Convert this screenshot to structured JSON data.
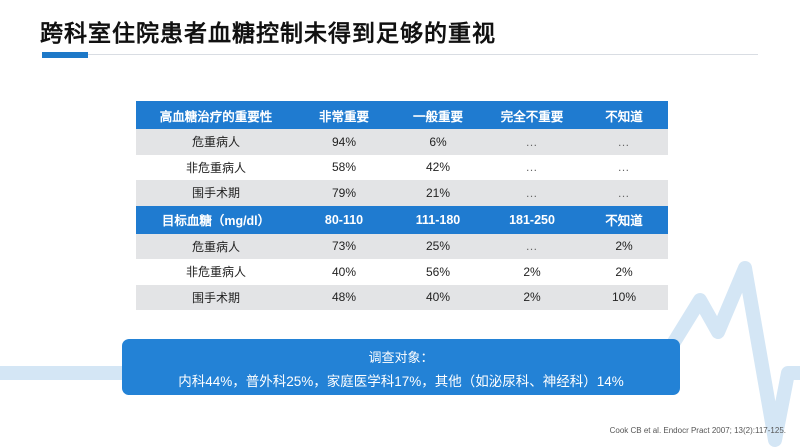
{
  "slide": {
    "title": "跨科室住院患者血糖控制未得到足够的重视"
  },
  "table": {
    "section1": {
      "header": [
        "高血糖治疗的重要性",
        "非常重要",
        "一般重要",
        "完全不重要",
        "不知道"
      ],
      "rows": [
        [
          "危重病人",
          "94%",
          "6%",
          "…",
          "…"
        ],
        [
          "非危重病人",
          "58%",
          "42%",
          "…",
          "…"
        ],
        [
          "围手术期",
          "79%",
          "21%",
          "…",
          "…"
        ]
      ]
    },
    "section2": {
      "header": [
        "目标血糖（mg/dl）",
        "80-110",
        "111-180",
        "181-250",
        "不知道"
      ],
      "rows": [
        [
          "危重病人",
          "73%",
          "25%",
          "…",
          "2%"
        ],
        [
          "非危重病人",
          "40%",
          "56%",
          "2%",
          "2%"
        ],
        [
          "围手术期",
          "48%",
          "40%",
          "2%",
          "10%"
        ]
      ]
    }
  },
  "info_box": {
    "line1": "调查对象：",
    "line2": "内科44%，普外科25%，家庭医学科17%，其他（如泌尿科、神经科）14%"
  },
  "citation": "Cook CB et al. Endocr Pract 2007; 13(2):117-125.",
  "colors": {
    "accent": "#1e79c8",
    "header_bg": "#1f7bd0",
    "row_gray": "#e3e4e6",
    "box_bg": "#2382d6",
    "deco": "#d4e6f5"
  }
}
